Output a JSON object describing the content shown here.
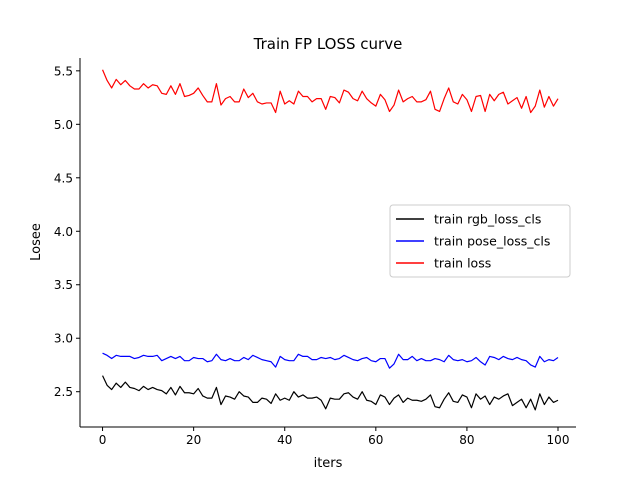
{
  "chart_data": {
    "type": "line",
    "title": "Train FP LOSS curve",
    "xlabel": "iters",
    "ylabel": "Losee",
    "xlim": [
      -4.95,
      103.95
    ],
    "ylim": [
      2.17,
      5.62
    ],
    "xticks": [
      0,
      20,
      40,
      60,
      80,
      100
    ],
    "xtick_labels": [
      "0",
      "20",
      "40",
      "60",
      "80",
      "100"
    ],
    "yticks": [
      2.5,
      3.0,
      3.5,
      4.0,
      4.5,
      5.0,
      5.5
    ],
    "ytick_labels": [
      "2.5",
      "3.0",
      "3.5",
      "4.0",
      "4.5",
      "5.0",
      "5.5"
    ],
    "spines": "left-bottom",
    "grid": false,
    "legend_position": "center-right",
    "series": [
      {
        "name": "train rgb_loss_cls",
        "color": "#000000",
        "values": [
          2.65,
          2.56,
          2.52,
          2.58,
          2.54,
          2.59,
          2.54,
          2.53,
          2.51,
          2.55,
          2.52,
          2.54,
          2.52,
          2.51,
          2.48,
          2.54,
          2.47,
          2.55,
          2.49,
          2.49,
          2.48,
          2.53,
          2.46,
          2.44,
          2.44,
          2.54,
          2.38,
          2.46,
          2.45,
          2.43,
          2.5,
          2.46,
          2.45,
          2.4,
          2.4,
          2.44,
          2.43,
          2.39,
          2.48,
          2.42,
          2.44,
          2.42,
          2.5,
          2.45,
          2.47,
          2.44,
          2.44,
          2.45,
          2.42,
          2.34,
          2.44,
          2.43,
          2.43,
          2.48,
          2.49,
          2.45,
          2.43,
          2.5,
          2.42,
          2.41,
          2.38,
          2.47,
          2.45,
          2.38,
          2.44,
          2.47,
          2.4,
          2.44,
          2.42,
          2.42,
          2.41,
          2.43,
          2.47,
          2.36,
          2.35,
          2.43,
          2.49,
          2.41,
          2.4,
          2.47,
          2.45,
          2.35,
          2.48,
          2.43,
          2.46,
          2.38,
          2.45,
          2.43,
          2.46,
          2.48,
          2.37,
          2.4,
          2.43,
          2.35,
          2.43,
          2.33,
          2.48,
          2.38,
          2.45,
          2.4,
          2.42
        ]
      },
      {
        "name": "train pose_loss_cls",
        "color": "#0000ff",
        "values": [
          2.86,
          2.84,
          2.81,
          2.84,
          2.83,
          2.83,
          2.83,
          2.81,
          2.82,
          2.84,
          2.83,
          2.83,
          2.84,
          2.79,
          2.81,
          2.83,
          2.81,
          2.83,
          2.79,
          2.79,
          2.82,
          2.81,
          2.81,
          2.78,
          2.79,
          2.85,
          2.8,
          2.79,
          2.81,
          2.79,
          2.79,
          2.82,
          2.8,
          2.84,
          2.82,
          2.8,
          2.79,
          2.78,
          2.73,
          2.83,
          2.8,
          2.79,
          2.79,
          2.85,
          2.83,
          2.83,
          2.8,
          2.8,
          2.82,
          2.81,
          2.82,
          2.8,
          2.81,
          2.84,
          2.82,
          2.8,
          2.79,
          2.81,
          2.82,
          2.79,
          2.78,
          2.81,
          2.81,
          2.72,
          2.76,
          2.85,
          2.8,
          2.8,
          2.83,
          2.79,
          2.81,
          2.79,
          2.79,
          2.81,
          2.8,
          2.78,
          2.84,
          2.8,
          2.79,
          2.8,
          2.78,
          2.79,
          2.82,
          2.78,
          2.75,
          2.83,
          2.82,
          2.8,
          2.83,
          2.81,
          2.8,
          2.82,
          2.8,
          2.79,
          2.75,
          2.73,
          2.83,
          2.78,
          2.8,
          2.79,
          2.82
        ]
      },
      {
        "name": "train loss",
        "color": "#ff0000",
        "values": [
          5.51,
          5.41,
          5.34,
          5.42,
          5.37,
          5.41,
          5.36,
          5.33,
          5.33,
          5.38,
          5.34,
          5.37,
          5.36,
          5.29,
          5.28,
          5.36,
          5.28,
          5.38,
          5.26,
          5.27,
          5.29,
          5.34,
          5.27,
          5.21,
          5.21,
          5.38,
          5.18,
          5.24,
          5.26,
          5.21,
          5.21,
          5.33,
          5.25,
          5.29,
          5.21,
          5.19,
          5.2,
          5.2,
          5.11,
          5.31,
          5.19,
          5.22,
          5.19,
          5.31,
          5.26,
          5.26,
          5.21,
          5.24,
          5.24,
          5.14,
          5.26,
          5.25,
          5.2,
          5.32,
          5.3,
          5.24,
          5.22,
          5.31,
          5.24,
          5.2,
          5.17,
          5.28,
          5.23,
          5.12,
          5.18,
          5.32,
          5.21,
          5.24,
          5.26,
          5.21,
          5.21,
          5.23,
          5.31,
          5.14,
          5.12,
          5.24,
          5.34,
          5.21,
          5.19,
          5.28,
          5.23,
          5.12,
          5.26,
          5.27,
          5.12,
          5.28,
          5.22,
          5.28,
          5.3,
          5.19,
          5.22,
          5.25,
          5.15,
          5.26,
          5.11,
          5.17,
          5.32,
          5.16,
          5.26,
          5.17,
          5.24
        ]
      }
    ]
  }
}
